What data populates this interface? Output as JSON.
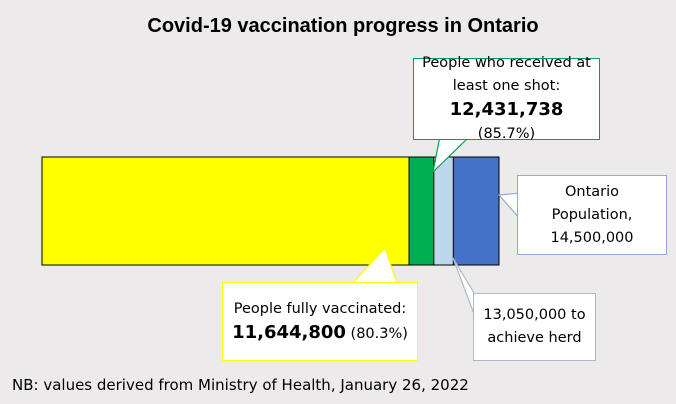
{
  "chart_data": {
    "type": "overlap-bar",
    "title": "Covid-19 vaccination progress in Ontario",
    "xlim": [
      0,
      14500000
    ],
    "bars": [
      {
        "name": "Ontario Population,",
        "value": 14500000,
        "value_label": "14,500,000",
        "color": "#4472c4"
      },
      {
        "name": "to achieve herd",
        "value": 13050000,
        "value_label": "13,050,000",
        "color": "#bdd7ee"
      },
      {
        "name": "People who received at least one shot:",
        "value": 12431738,
        "value_label": "12,431,738",
        "percent": "(85.7%)",
        "color": "#00b050"
      },
      {
        "name": "People fully vaccinated:",
        "value": 11644800,
        "value_label": "11,644,800",
        "percent": "(80.3%)",
        "color": "#ffff00"
      }
    ],
    "note": "NB: values derived from Ministry of Health, January 26, 2022"
  }
}
